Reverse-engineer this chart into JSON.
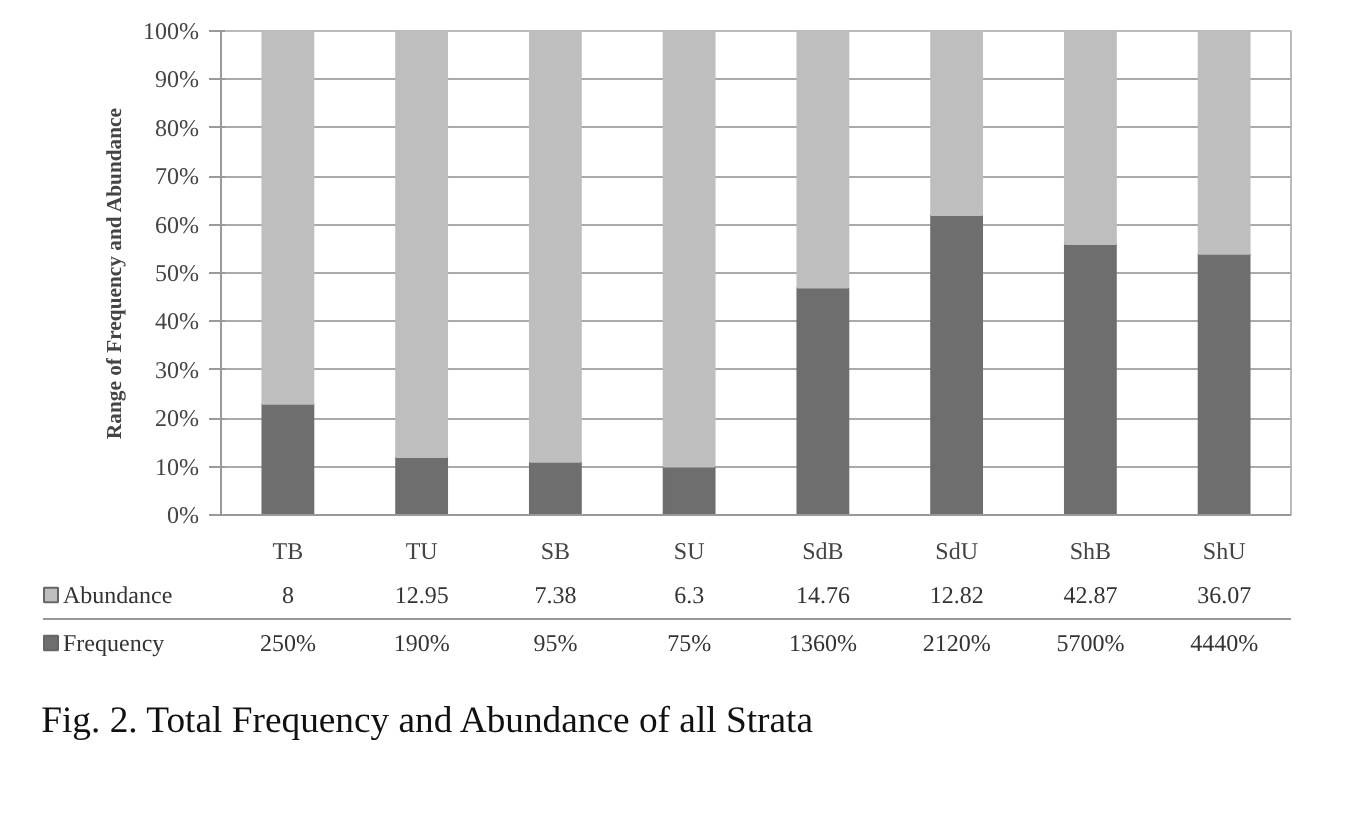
{
  "chart_data": {
    "type": "bar",
    "stacked": true,
    "ylabel": "Range of Frequency and Abundance",
    "categories": [
      "TB",
      "TU",
      "SB",
      "SU",
      "SdB",
      "SdU",
      "ShB",
      "ShU"
    ],
    "series": [
      {
        "name": "Frequency",
        "color": "#6e6e6e",
        "values": [
          23,
          12,
          11,
          10,
          47,
          62,
          56,
          54
        ]
      },
      {
        "name": "Abundance",
        "color": "#bebebe",
        "values": [
          77,
          88,
          89,
          90,
          53,
          38,
          44,
          46
        ]
      }
    ],
    "ylim": [
      0,
      100
    ],
    "yticks": [
      {
        "value": 0,
        "label": "0%"
      },
      {
        "value": 10,
        "label": "10%"
      },
      {
        "value": 20,
        "label": "20%"
      },
      {
        "value": 30,
        "label": "30%"
      },
      {
        "value": 40,
        "label": "40%"
      },
      {
        "value": 50,
        "label": "50%"
      },
      {
        "value": 60,
        "label": "60%"
      },
      {
        "value": 70,
        "label": "70%"
      },
      {
        "value": 80,
        "label": "80%"
      },
      {
        "value": 90,
        "label": "90%"
      },
      {
        "value": 100,
        "label": "100%"
      }
    ],
    "grid": "y",
    "legend": "bottom left",
    "annotations": [
      "8",
      "12.95",
      "7.38",
      "6.3",
      "14.76",
      "12.82",
      "42.87",
      "36.07",
      "250%",
      "190%",
      "95%",
      "75%",
      "1360%",
      "2120%",
      "5700%",
      "4440%",
      "Fig. 2. Total Frequency and Abundance of all Strata"
    ]
  }
}
